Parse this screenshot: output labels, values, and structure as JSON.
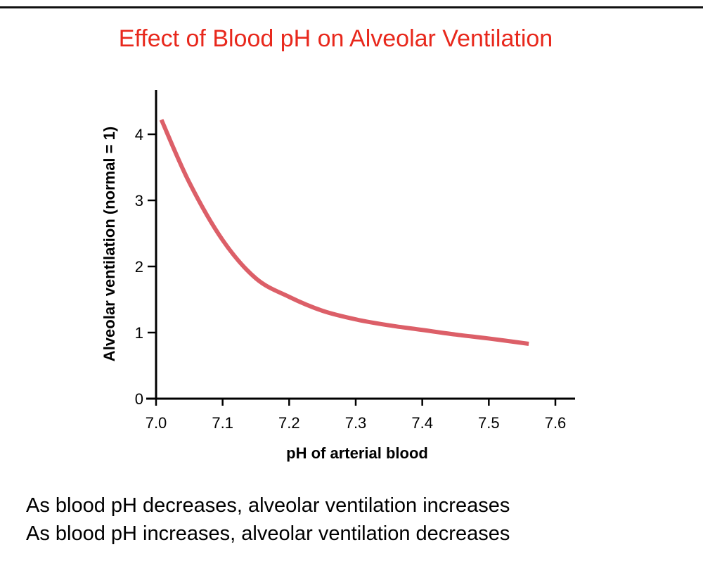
{
  "chart_data": {
    "type": "line",
    "title": "Effect of Blood pH on Alveolar Ventilation",
    "xlabel": "pH of arterial blood",
    "ylabel": "Alveolar ventilation (normal = 1)",
    "xlim": [
      7.0,
      7.6
    ],
    "ylim": [
      0,
      4.5
    ],
    "xticks": [
      "7.0",
      "7.1",
      "7.2",
      "7.3",
      "7.4",
      "7.5",
      "7.6"
    ],
    "yticks": [
      "0",
      "1",
      "2",
      "3",
      "4"
    ],
    "grid": false,
    "series": [
      {
        "name": "Alveolar ventilation",
        "color": "#dc5f68",
        "x": [
          7.008,
          7.05,
          7.1,
          7.15,
          7.2,
          7.25,
          7.3,
          7.35,
          7.4,
          7.45,
          7.5,
          7.56
        ],
        "y": [
          4.22,
          3.27,
          2.4,
          1.82,
          1.54,
          1.33,
          1.2,
          1.11,
          1.04,
          0.97,
          0.91,
          0.83
        ]
      }
    ]
  },
  "captions": [
    "As blood pH decreases, alveolar ventilation increases",
    "As blood pH increases, alveolar ventilation decreases"
  ]
}
